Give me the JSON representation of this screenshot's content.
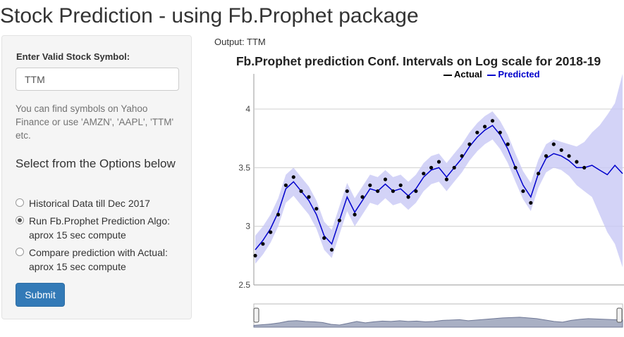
{
  "page": {
    "title": "Stock Prediction - using Fb.Prophet package"
  },
  "sidebar": {
    "symbol_label": "Enter Valid Stock Symbol:",
    "symbol_value": "TTM",
    "help_text": "You can find symbols on Yahoo Finance or use 'AMZN', 'AAPL', 'TTM' etc.",
    "options_title": "Select from the Options below",
    "options": [
      {
        "label": "Historical Data till Dec 2017",
        "checked": false
      },
      {
        "label": "Run Fb.Prophet Prediction Algo: aprox 15 sec compute",
        "checked": true
      },
      {
        "label": "Compare prediction with Actual: aprox 15 sec compute",
        "checked": false
      }
    ],
    "submit_label": "Submit"
  },
  "output": {
    "label": "Output: TTM"
  },
  "colors": {
    "actual": "#000000",
    "predicted": "#0000cc",
    "interval": "#c8c8f5",
    "button": "#337ab7"
  },
  "chart_data": {
    "type": "line",
    "title": "Fb.Prophet prediction Conf. Intervals on Log scale for 2018-19",
    "xlabel": "",
    "ylabel": "",
    "ylim": [
      2.5,
      4.3
    ],
    "yticks": [
      "2.5",
      "3",
      "3.5",
      "4"
    ],
    "grid": true,
    "legend_placement": "top-right",
    "series": [
      {
        "name": "Actual",
        "color": "#000000",
        "values": [
          2.75,
          2.85,
          2.95,
          3.1,
          3.35,
          3.42,
          3.3,
          3.25,
          3.15,
          2.9,
          2.8,
          3.05,
          3.3,
          3.1,
          3.25,
          3.35,
          3.3,
          3.4,
          3.3,
          3.35,
          3.25,
          3.3,
          3.45,
          3.5,
          3.55,
          3.4,
          3.5,
          3.6,
          3.7,
          3.8,
          3.85,
          3.9,
          3.8,
          3.7,
          3.5,
          3.3,
          3.2,
          3.45,
          3.6,
          3.7,
          3.65,
          3.6,
          3.55,
          3.5
        ]
      },
      {
        "name": "Predicted",
        "color": "#0000cc",
        "values": [
          2.8,
          2.88,
          2.98,
          3.12,
          3.32,
          3.38,
          3.3,
          3.22,
          3.1,
          2.92,
          2.85,
          3.05,
          3.25,
          3.12,
          3.22,
          3.32,
          3.3,
          3.36,
          3.3,
          3.32,
          3.26,
          3.32,
          3.42,
          3.48,
          3.5,
          3.42,
          3.5,
          3.58,
          3.68,
          3.76,
          3.82,
          3.86,
          3.78,
          3.66,
          3.5,
          3.35,
          3.25,
          3.45,
          3.58,
          3.62,
          3.6,
          3.56,
          3.5,
          3.5,
          3.52,
          3.48,
          3.44,
          3.52,
          3.45
        ]
      }
    ],
    "interval_lower": [
      2.68,
      2.76,
      2.86,
      3.0,
      3.2,
      3.26,
      3.18,
      3.1,
      2.98,
      2.8,
      2.73,
      2.93,
      3.13,
      3.0,
      3.1,
      3.2,
      3.18,
      3.24,
      3.18,
      3.2,
      3.14,
      3.2,
      3.3,
      3.36,
      3.38,
      3.3,
      3.38,
      3.46,
      3.56,
      3.64,
      3.7,
      3.74,
      3.66,
      3.54,
      3.38,
      3.23,
      3.13,
      3.33,
      3.46,
      3.5,
      3.48,
      3.43,
      3.35,
      3.3,
      3.25,
      3.1,
      2.95,
      2.85,
      2.65
    ],
    "interval_upper": [
      2.92,
      3.0,
      3.1,
      3.24,
      3.44,
      3.5,
      3.42,
      3.34,
      3.22,
      3.04,
      2.97,
      3.17,
      3.37,
      3.24,
      3.34,
      3.44,
      3.42,
      3.48,
      3.42,
      3.44,
      3.38,
      3.44,
      3.54,
      3.6,
      3.62,
      3.54,
      3.62,
      3.7,
      3.8,
      3.88,
      3.94,
      3.98,
      3.9,
      3.78,
      3.62,
      3.47,
      3.37,
      3.57,
      3.7,
      3.74,
      3.72,
      3.7,
      3.68,
      3.72,
      3.8,
      3.86,
      3.95,
      4.05,
      4.3
    ]
  }
}
